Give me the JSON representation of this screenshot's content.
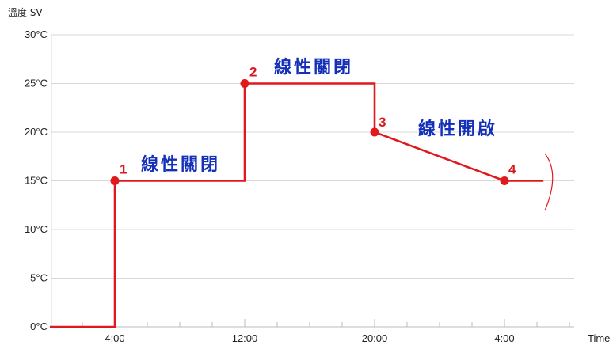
{
  "chart_data": {
    "type": "line",
    "ylabel": "溫度 SV",
    "xlabel": "Time",
    "ylim": [
      0,
      30
    ],
    "y_ticks": [
      "0°C",
      "5°C",
      "10°C",
      "15°C",
      "20°C",
      "25°C",
      "30°C"
    ],
    "x_ticks": [
      "4:00",
      "12:00",
      "20:00",
      "4:00"
    ],
    "grid": true,
    "series": [
      {
        "color": "#e0191e",
        "points": [
          {
            "x": 0,
            "y": 0
          },
          {
            "x": 4,
            "y": 0
          },
          {
            "x": 4,
            "y": 15
          },
          {
            "x": 12,
            "y": 15
          },
          {
            "x": 12,
            "y": 25
          },
          {
            "x": 20,
            "y": 25
          },
          {
            "x": 20,
            "y": 20
          },
          {
            "x": 28,
            "y": 15
          },
          {
            "x": 30.4,
            "y": 15
          }
        ]
      }
    ],
    "markers": [
      {
        "label": "1",
        "x": 4,
        "y": 15
      },
      {
        "label": "2",
        "x": 12,
        "y": 25
      },
      {
        "label": "3",
        "x": 20,
        "y": 20
      },
      {
        "label": "4",
        "x": 28,
        "y": 15
      }
    ],
    "annotations": [
      {
        "text": "線性關閉",
        "segment": "1-2"
      },
      {
        "text": "線性關閉",
        "segment": "2-3"
      },
      {
        "text": "線性開啟",
        "segment": "3-4"
      }
    ],
    "colors": {
      "line": "#e0191e",
      "annotation": "#1430b8",
      "grid": "#d9d9d9"
    }
  }
}
